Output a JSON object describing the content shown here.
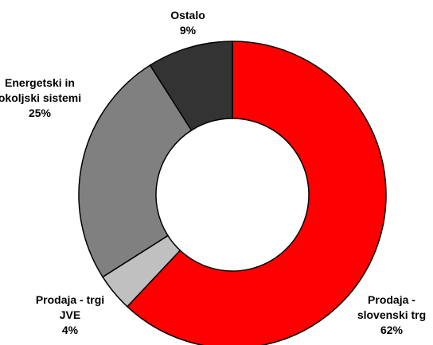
{
  "chart_data": {
    "type": "donut",
    "categories": [
      "Prodaja - slovenski trg",
      "Prodaja - trgi JVE",
      "Energetski in okoljski sistemi",
      "Ostalo"
    ],
    "values": [
      62,
      4,
      25,
      9
    ],
    "value_labels": [
      "62%",
      "4%",
      "25%",
      "9%"
    ],
    "colors": [
      "#ff0000",
      "#c0c0c0",
      "#808080",
      "#333333"
    ]
  }
}
